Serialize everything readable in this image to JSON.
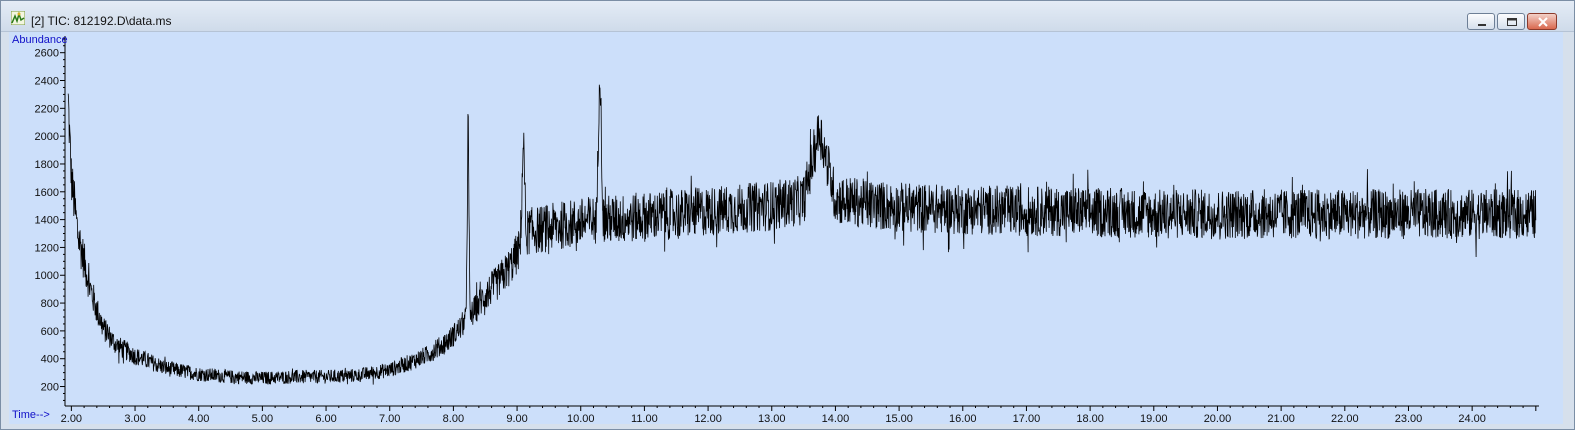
{
  "window": {
    "title": "[2] TIC: 812192.D\\data.ms",
    "icon": "chromatogram-app-icon"
  },
  "controls": {
    "minimize_icon": "minimize-icon",
    "maximize_icon": "maximize-icon",
    "close_icon": "close-icon"
  },
  "colors": {
    "plot_background": "#ccdffa",
    "trace": "#000000",
    "axis_label": "#1010c8"
  },
  "chart_data": {
    "type": "line",
    "title": "",
    "xlabel": "Time-->",
    "ylabel": "Abundance",
    "xlim": [
      1.9,
      25.05
    ],
    "ylim": [
      60,
      2720
    ],
    "x_ticks": [
      "2.00",
      "3.00",
      "4.00",
      "5.00",
      "6.00",
      "7.00",
      "8.00",
      "9.00",
      "10.00",
      "11.00",
      "12.00",
      "13.00",
      "14.00",
      "15.00",
      "16.00",
      "17.00",
      "18.00",
      "19.00",
      "20.00",
      "21.00",
      "22.00",
      "23.00",
      "24.00"
    ],
    "y_ticks": [
      "200",
      "400",
      "600",
      "800",
      "1000",
      "1200",
      "1400",
      "1600",
      "1800",
      "2000",
      "2200",
      "2400",
      "2600"
    ],
    "grid": false,
    "series": [
      {
        "name": "",
        "x": [
          1.95,
          2.0,
          2.05,
          2.1,
          2.2,
          2.3,
          2.4,
          2.5,
          2.7,
          3.0,
          3.5,
          4.0,
          4.5,
          5.0,
          5.5,
          6.0,
          6.5,
          7.0,
          7.3,
          7.6,
          7.9,
          8.1,
          8.2,
          8.23,
          8.26,
          8.35,
          8.5,
          8.7,
          8.9,
          9.05,
          9.1,
          9.14,
          9.2,
          9.4,
          9.7,
          10.0,
          10.25,
          10.3,
          10.35,
          10.5,
          11.0,
          11.5,
          12.0,
          12.5,
          13.0,
          13.5,
          13.75,
          14.0,
          14.5,
          15.0,
          15.5,
          16.0,
          16.5,
          17.0,
          17.5,
          18.0,
          18.5,
          19.0,
          19.5,
          20.0,
          20.5,
          21.0,
          21.5,
          22.0,
          22.5,
          23.0,
          23.5,
          24.0,
          24.5,
          25.0
        ],
        "y": [
          2250,
          1700,
          1500,
          1300,
          1100,
          900,
          750,
          620,
          500,
          420,
          330,
          290,
          270,
          260,
          270,
          270,
          280,
          320,
          370,
          430,
          520,
          620,
          680,
          2200,
          700,
          760,
          860,
          950,
          1070,
          1200,
          2000,
          1300,
          1320,
          1330,
          1360,
          1380,
          1400,
          2580,
          1400,
          1400,
          1420,
          1440,
          1460,
          1480,
          1500,
          1540,
          2050,
          1550,
          1510,
          1490,
          1480,
          1470,
          1470,
          1460,
          1460,
          1450,
          1450,
          1440,
          1440,
          1440,
          1440,
          1440,
          1440,
          1440,
          1440,
          1440,
          1440,
          1440,
          1440,
          1440
        ],
        "noise_amplitude": 180
      }
    ]
  }
}
